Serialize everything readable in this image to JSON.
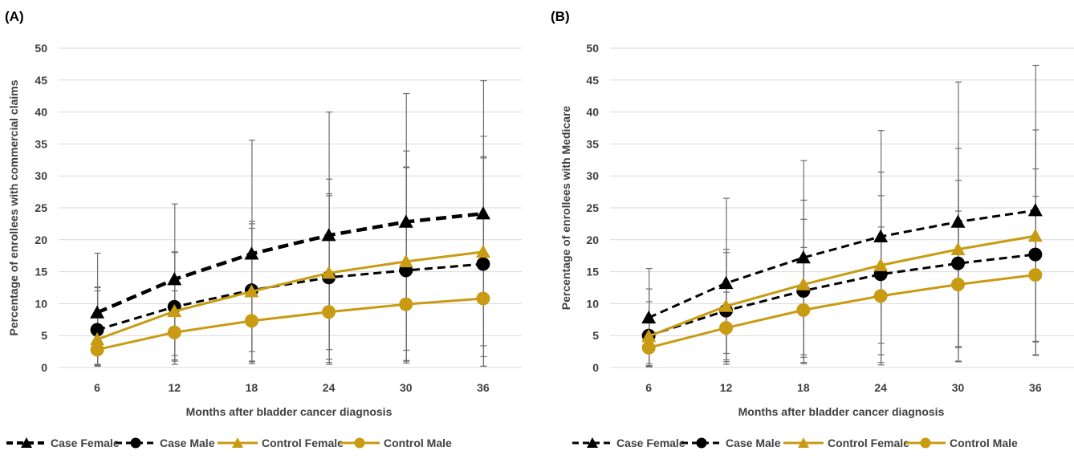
{
  "colors": {
    "case": "#000000",
    "control": "#c89b12",
    "grid": "#d9d9d9",
    "errorbar": "#6e6e6e",
    "text": "#404040"
  },
  "legend_labels": [
    "Case Female",
    "Case Male",
    "Control Female",
    "Control Male"
  ],
  "chart_data": [
    {
      "type": "line",
      "panel_label": "(A)",
      "xlabel": "Months after bladder cancer diagnosis",
      "ylabel": "Percentage of enrollees with commercial claims",
      "categories": [
        "6",
        "12",
        "18",
        "24",
        "30",
        "36"
      ],
      "ylim": [
        0,
        50
      ],
      "yticks": [
        0,
        5,
        10,
        15,
        20,
        25,
        30,
        35,
        40,
        45,
        50
      ],
      "grid": true,
      "legend_position": "bottom",
      "series": [
        {
          "name": "Case Female",
          "group": "case",
          "line": "dashed-thick",
          "marker": "triangle",
          "values": [
            8.6,
            13.8,
            17.8,
            20.7,
            22.8,
            24.1
          ],
          "err_low": [
            0.3,
            1.0,
            0.9,
            0.8,
            1.0,
            0.2
          ],
          "err_high": [
            17.9,
            25.6,
            35.6,
            40.0,
            42.9,
            44.9
          ]
        },
        {
          "name": "Case Male",
          "group": "case",
          "line": "dashed",
          "marker": "circle",
          "values": [
            5.9,
            9.5,
            12.1,
            14.1,
            15.2,
            16.2
          ],
          "err_low": [
            0.5,
            1.9,
            2.5,
            2.8,
            2.7,
            3.4
          ],
          "err_high": [
            12.6,
            18.1,
            22.9,
            29.5,
            33.9,
            36.2
          ]
        },
        {
          "name": "Control Female",
          "group": "control",
          "line": "solid",
          "marker": "triangle",
          "values": [
            4.4,
            8.8,
            11.9,
            14.8,
            16.6,
            18.1
          ],
          "err_low": [
            0.4,
            1.2,
            1.0,
            1.3,
            1.1,
            1.7
          ],
          "err_high": [
            12.5,
            18.0,
            22.5,
            27.2,
            31.4,
            33.0
          ]
        },
        {
          "name": "Control Male",
          "group": "control",
          "line": "solid",
          "marker": "circle",
          "values": [
            2.8,
            5.5,
            7.3,
            8.7,
            9.9,
            10.8
          ],
          "err_low": [
            0.2,
            0.5,
            0.6,
            0.5,
            0.7,
            0.2
          ],
          "err_high": [
            12.0,
            12.0,
            21.8,
            26.9,
            31.3,
            32.8
          ]
        }
      ]
    },
    {
      "type": "line",
      "panel_label": "(B)",
      "xlabel": "Months after bladder cancer diagnosis",
      "ylabel": "Percentage of enrollees with Medicare",
      "categories": [
        "6",
        "12",
        "18",
        "24",
        "30",
        "36"
      ],
      "ylim": [
        0,
        50
      ],
      "yticks": [
        0,
        5,
        10,
        15,
        20,
        25,
        30,
        35,
        40,
        45,
        50
      ],
      "grid": true,
      "legend_position": "bottom",
      "series": [
        {
          "name": "Case Female",
          "group": "case",
          "line": "dashed",
          "marker": "triangle",
          "values": [
            7.8,
            13.2,
            17.2,
            20.5,
            22.8,
            24.6
          ],
          "err_low": [
            0.2,
            0.9,
            0.8,
            0.4,
            1.0,
            1.9
          ],
          "err_high": [
            15.5,
            26.5,
            32.4,
            37.1,
            44.7,
            47.3
          ]
        },
        {
          "name": "Case Male",
          "group": "case",
          "line": "dashed",
          "marker": "circle",
          "values": [
            5.0,
            8.9,
            12.0,
            14.6,
            16.3,
            17.7
          ],
          "err_low": [
            0.3,
            1.2,
            1.6,
            2.0,
            3.1,
            4.1
          ],
          "err_high": [
            12.3,
            18.5,
            26.2,
            30.6,
            34.3,
            37.2
          ]
        },
        {
          "name": "Control Female",
          "group": "control",
          "line": "solid",
          "marker": "triangle",
          "values": [
            4.9,
            9.6,
            13.0,
            16.0,
            18.5,
            20.6
          ],
          "err_low": [
            0.6,
            2.2,
            2.0,
            3.8,
            3.3,
            4.0
          ],
          "err_high": [
            10.3,
            18.0,
            23.2,
            26.9,
            29.3,
            31.1
          ]
        },
        {
          "name": "Control Male",
          "group": "control",
          "line": "solid",
          "marker": "circle",
          "values": [
            3.1,
            6.2,
            9.0,
            11.2,
            13.0,
            14.5
          ],
          "err_low": [
            0.1,
            0.5,
            0.6,
            0.8,
            0.9,
            2.0
          ],
          "err_high": [
            7.5,
            11.8,
            18.8,
            22.0,
            24.5,
            26.8
          ]
        }
      ]
    }
  ]
}
